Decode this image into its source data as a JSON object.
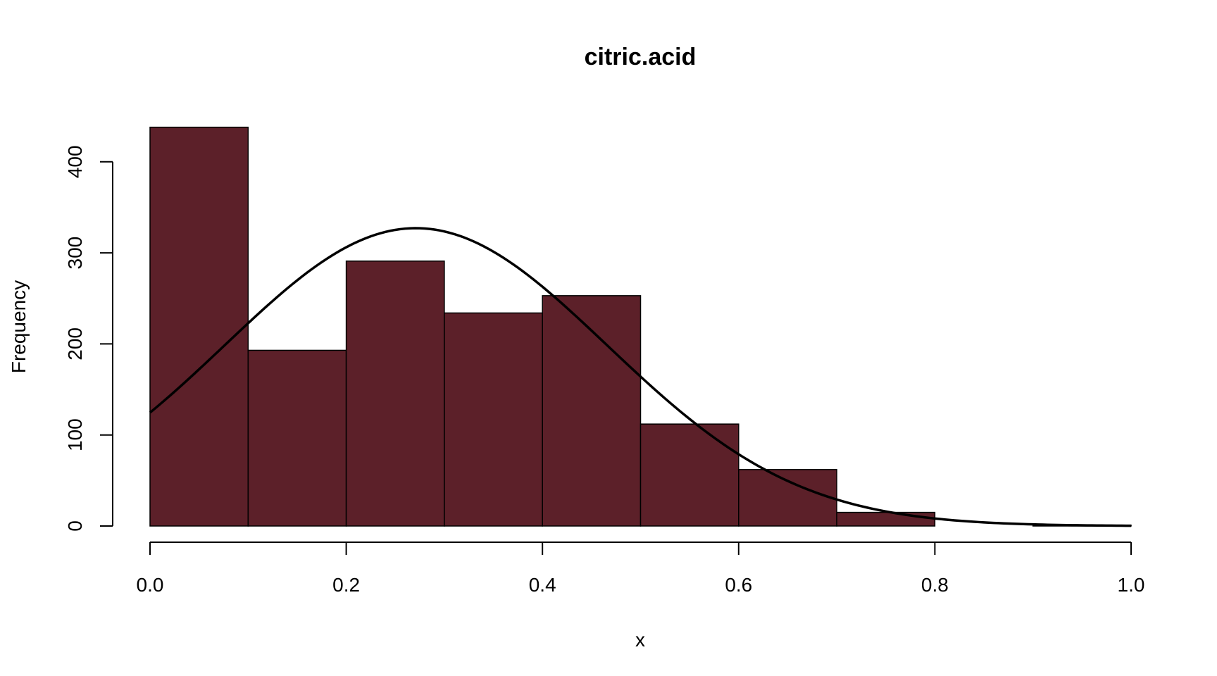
{
  "chart_data": {
    "type": "bar",
    "title": "citric.acid",
    "xlabel": "x",
    "ylabel": "Frequency",
    "bar_color": "#5c2029",
    "bins": [
      {
        "from": 0.0,
        "to": 0.1,
        "count": 438
      },
      {
        "from": 0.1,
        "to": 0.2,
        "count": 193
      },
      {
        "from": 0.2,
        "to": 0.3,
        "count": 291
      },
      {
        "from": 0.3,
        "to": 0.4,
        "count": 234
      },
      {
        "from": 0.4,
        "to": 0.5,
        "count": 253
      },
      {
        "from": 0.5,
        "to": 0.6,
        "count": 112
      },
      {
        "from": 0.6,
        "to": 0.7,
        "count": 62
      },
      {
        "from": 0.7,
        "to": 0.8,
        "count": 15
      },
      {
        "from": 0.8,
        "to": 0.9,
        "count": 0
      },
      {
        "from": 0.9,
        "to": 1.0,
        "count": 1
      }
    ],
    "normal_curve": {
      "mean": 0.271,
      "sd": 0.195,
      "n": 1599,
      "bin_width": 0.1
    },
    "xlim": [
      0.0,
      1.0
    ],
    "ylim": [
      0,
      440
    ],
    "x_ticks": [
      "0.0",
      "0.2",
      "0.4",
      "0.6",
      "0.8",
      "1.0"
    ],
    "y_ticks": [
      "0",
      "100",
      "200",
      "300",
      "400"
    ],
    "grid": false,
    "legend": "none"
  }
}
